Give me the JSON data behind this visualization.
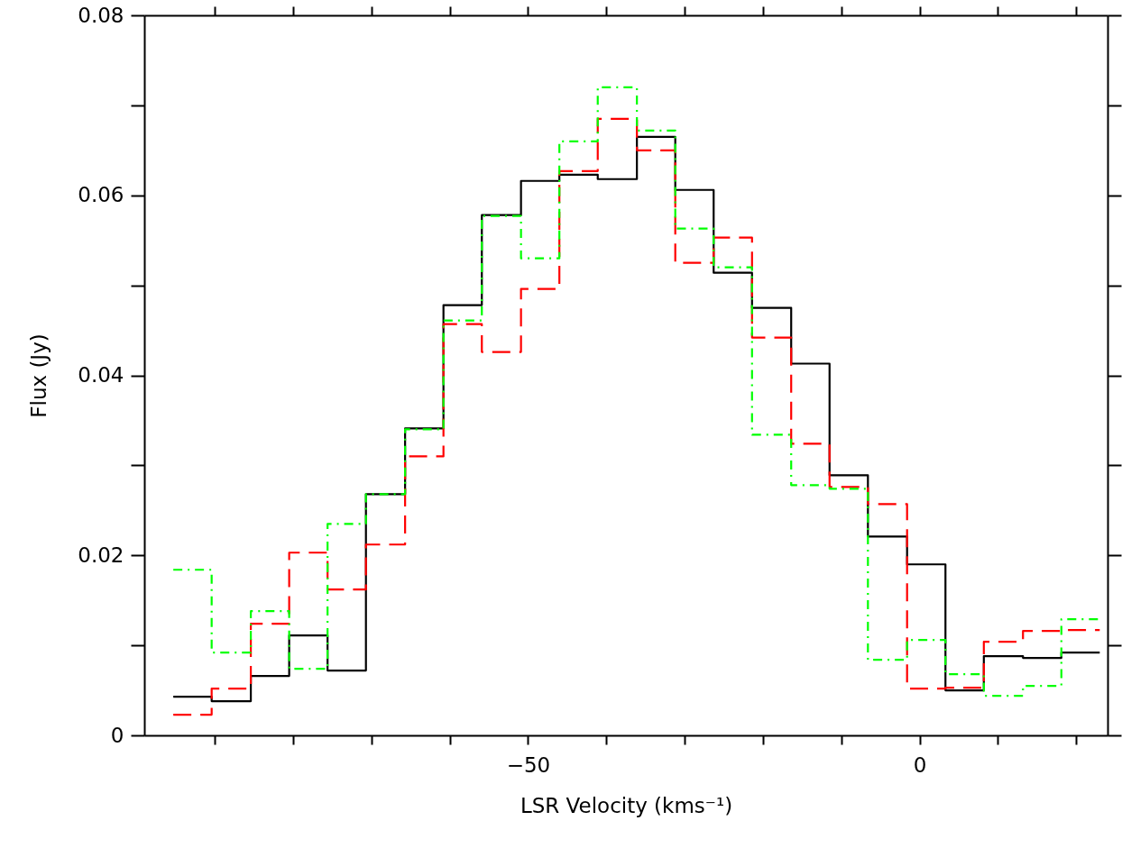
{
  "chart_data": {
    "type": "step",
    "xlabel": "LSR Velocity (kms⁻¹)",
    "ylabel": "Flux (Jy)",
    "x": [
      -95.3,
      -90.4,
      -85.4,
      -80.5,
      -75.6,
      -70.7,
      -65.7,
      -60.8,
      -55.9,
      -50.9,
      -46.0,
      -41.1,
      -36.1,
      -31.2,
      -26.3,
      -21.4,
      -16.4,
      -11.5,
      -6.6,
      -1.6,
      3.3,
      8.2,
      13.2,
      18.1,
      23.0
    ],
    "series": [
      {
        "color": "#000000",
        "line_style": "solid",
        "values": [
          0.0043,
          0.0038,
          0.0066,
          0.0111,
          0.0072,
          0.0268,
          0.0341,
          0.0478,
          0.0578,
          0.0616,
          0.0623,
          0.0618,
          0.0665,
          0.0606,
          0.0514,
          0.0475,
          0.0413,
          0.0289,
          0.0221,
          0.019,
          0.005,
          0.0088,
          0.0086,
          0.0092,
          0.0092
        ]
      },
      {
        "color": "#ff0000",
        "line_style": "dashed",
        "values": [
          0.0023,
          0.0052,
          0.0124,
          0.0203,
          0.0162,
          0.0212,
          0.031,
          0.0457,
          0.0426,
          0.0496,
          0.0627,
          0.0685,
          0.065,
          0.0525,
          0.0553,
          0.0442,
          0.0324,
          0.0276,
          0.0257,
          0.0052,
          0.0053,
          0.0104,
          0.0116,
          0.0117,
          0.0117
        ]
      },
      {
        "color": "#00ff00",
        "line_style": "dashdot",
        "values": [
          0.0184,
          0.0092,
          0.0138,
          0.0074,
          0.0235,
          0.0268,
          0.034,
          0.0461,
          0.0577,
          0.053,
          0.066,
          0.072,
          0.0672,
          0.0563,
          0.052,
          0.0334,
          0.0278,
          0.0274,
          0.0084,
          0.0106,
          0.0068,
          0.0044,
          0.0055,
          0.0129,
          0.0129
        ]
      }
    ],
    "xlim": [
      -99,
      24
    ],
    "xticks": [
      {
        "value": -90,
        "label": null
      },
      {
        "value": -80,
        "label": null
      },
      {
        "value": -70,
        "label": null
      },
      {
        "value": -60,
        "label": null
      },
      {
        "value": -50,
        "label": "−50"
      },
      {
        "value": -40,
        "label": null
      },
      {
        "value": -30,
        "label": null
      },
      {
        "value": -20,
        "label": null
      },
      {
        "value": -10,
        "label": null
      },
      0,
      {
        "value": 10,
        "label": null
      },
      {
        "value": 20,
        "label": null
      }
    ],
    "ylim": [
      0,
      0.08
    ],
    "yticks": [
      0,
      {
        "value": 0.01,
        "label": null
      },
      0.02,
      {
        "value": 0.03,
        "label": null
      },
      0.04,
      {
        "value": 0.05,
        "label": null
      },
      0.06,
      {
        "value": 0.07,
        "label": null
      },
      0.08
    ],
    "grid": false
  }
}
